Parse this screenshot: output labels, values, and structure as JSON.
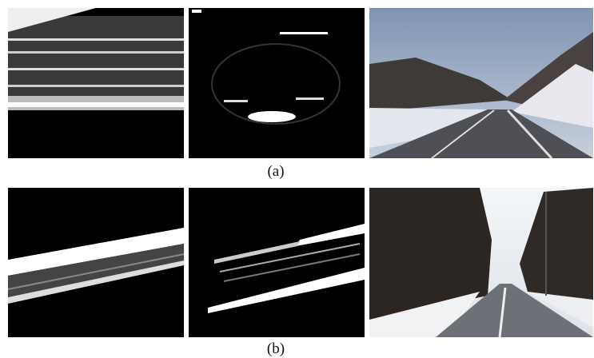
{
  "figure": {
    "rows": [
      {
        "label": "(a)"
      },
      {
        "label": "(b)"
      }
    ]
  }
}
